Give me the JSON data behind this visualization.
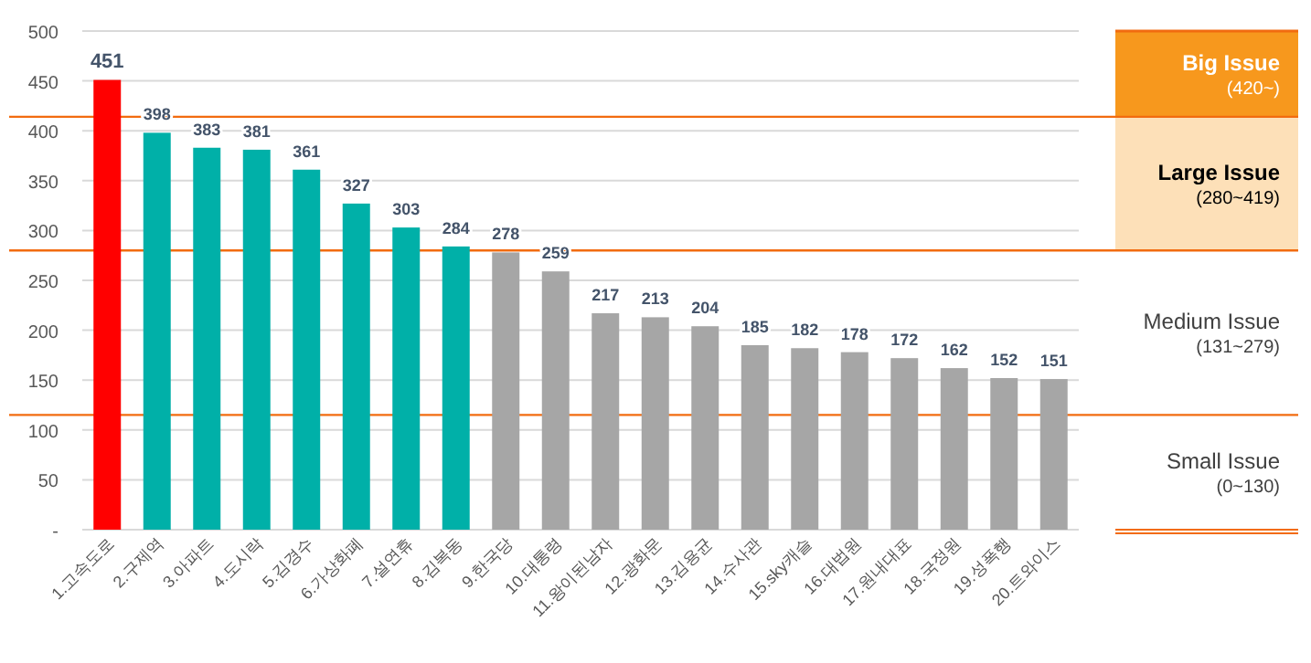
{
  "chart_data": {
    "type": "bar",
    "categories": [
      "1.고속도로",
      "2.구제역",
      "3.아파트",
      "4.도시락",
      "5.김경수",
      "6.가상화폐",
      "7.설연휴",
      "8.김복동",
      "9.한국당",
      "10.대통령",
      "11.왕이된남자",
      "12.광화문",
      "13.김용균",
      "14.수사관",
      "15.sky캐슬",
      "16.대법원",
      "17.원내대표",
      "18.국정원",
      "19.성폭행",
      "20.트와이스"
    ],
    "values": [
      451,
      398,
      383,
      381,
      361,
      327,
      303,
      284,
      278,
      259,
      217,
      213,
      204,
      185,
      182,
      178,
      172,
      162,
      152,
      151
    ],
    "colors": [
      "#ff0000",
      "#00b0a8",
      "#00b0a8",
      "#00b0a8",
      "#00b0a8",
      "#00b0a8",
      "#00b0a8",
      "#00b0a8",
      "#a6a6a6",
      "#a6a6a6",
      "#a6a6a6",
      "#a6a6a6",
      "#a6a6a6",
      "#a6a6a6",
      "#a6a6a6",
      "#a6a6a6",
      "#a6a6a6",
      "#a6a6a6",
      "#a6a6a6",
      "#a6a6a6"
    ],
    "data_labels": true,
    "ylim": [
      0,
      500
    ],
    "yticks": [
      {
        "value": 0,
        "label": "-"
      },
      50,
      100,
      150,
      200,
      250,
      300,
      350,
      400,
      450,
      500
    ],
    "grid": "y",
    "ref_lines": [
      {
        "axis": "y",
        "value": 414,
        "color": "#f26b0f"
      },
      {
        "axis": "y",
        "value": 280,
        "color": "#f26b0f"
      },
      {
        "axis": "y",
        "value": 115,
        "color": "#f26b0f"
      }
    ],
    "annotations": [
      "Big Issue\n(420~)",
      "Large Issue\n(280~419)",
      "Medium Issue\n(131~279)",
      "Small Issue\n(0~130)"
    ]
  }
}
